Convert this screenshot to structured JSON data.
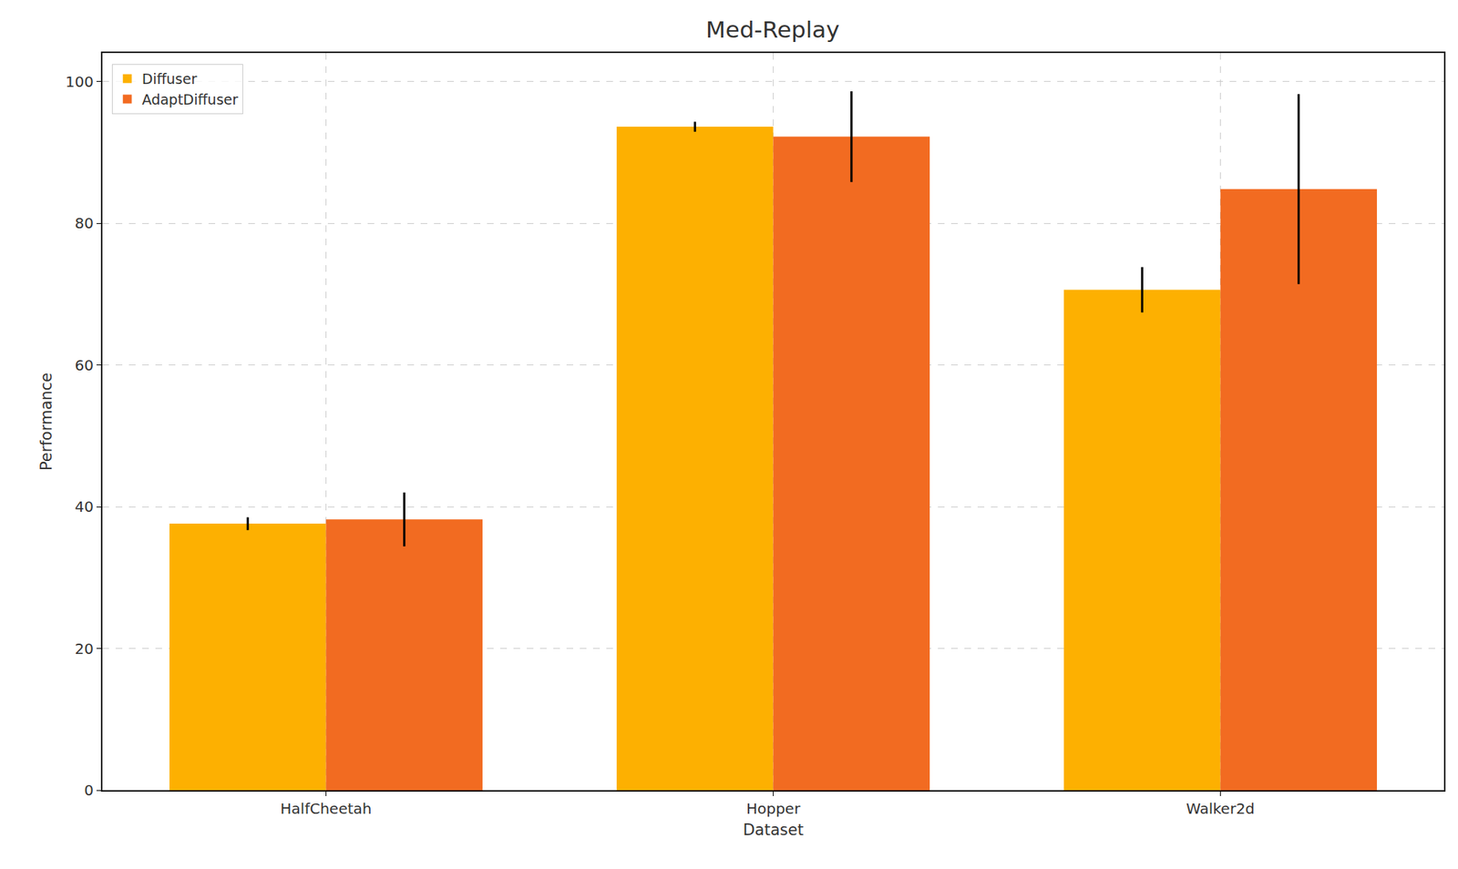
{
  "chart_data": {
    "type": "bar",
    "title": "Med-Replay",
    "x_label": "Dataset",
    "y_label": "Performance",
    "categories": [
      "HalfCheetah",
      "Hopper",
      "Walker2d"
    ],
    "series": [
      {
        "name": "Diffuser",
        "color": "#fdb001",
        "values": [
          37.6,
          93.6,
          70.6
        ],
        "error": [
          0.9,
          0.7,
          3.2
        ]
      },
      {
        "name": "AdaptDiffuser",
        "color": "#f26b21",
        "values": [
          38.2,
          92.2,
          84.8
        ],
        "error": [
          3.8,
          6.4,
          13.4
        ]
      }
    ],
    "ylim": [
      0,
      104
    ],
    "yticks": [
      0,
      20,
      40,
      60,
      80,
      100
    ],
    "grid": true,
    "legend": "upper left"
  }
}
